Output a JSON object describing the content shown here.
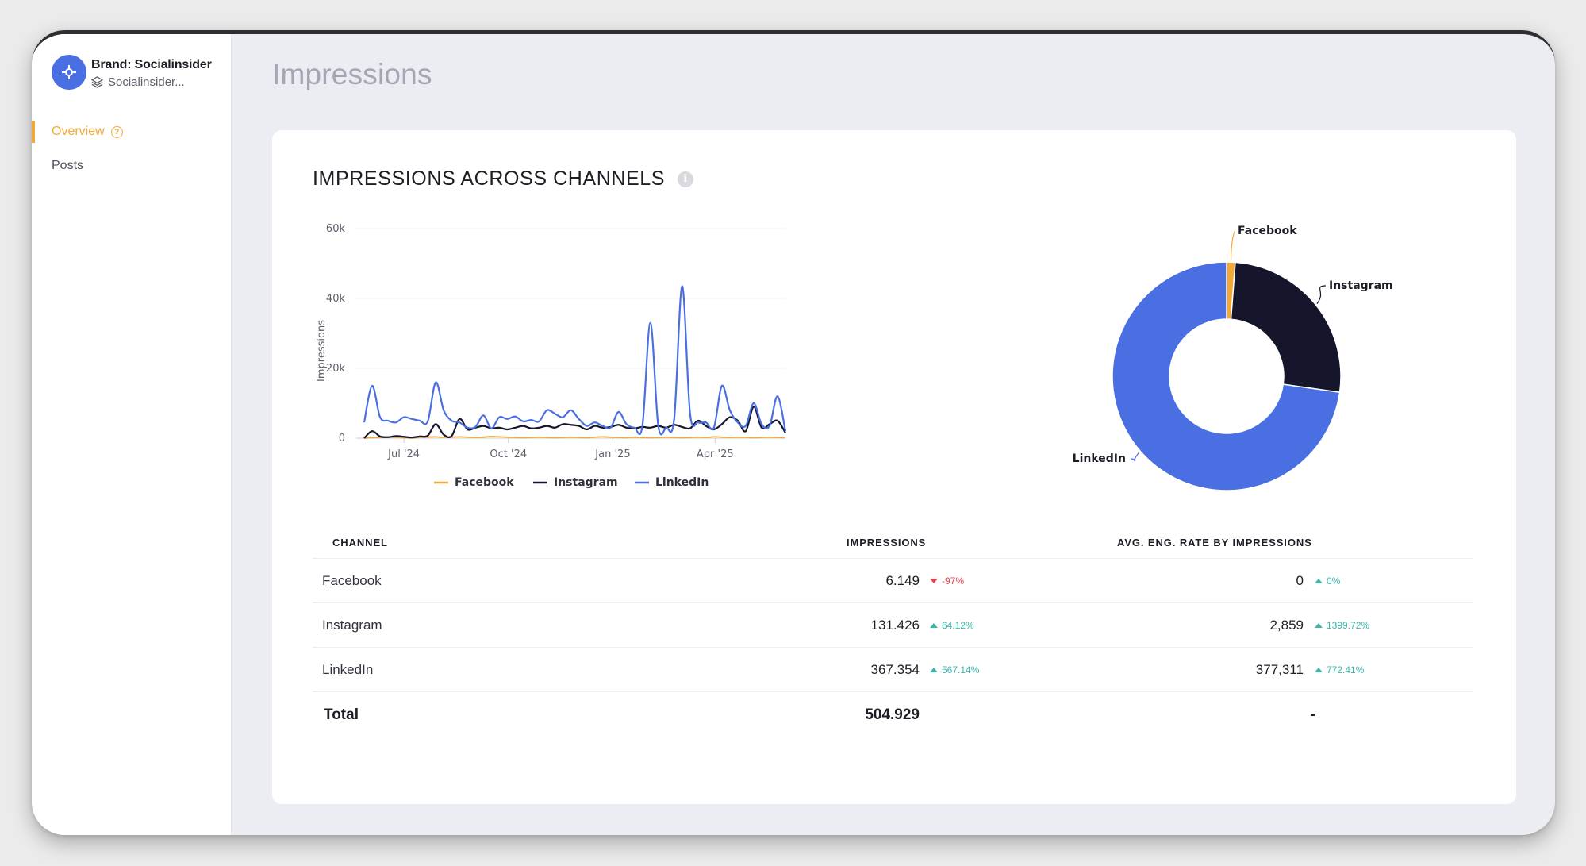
{
  "sidebar": {
    "brand_name": "Brand: Socialinsider",
    "brand_sub": "Socialinsider...",
    "items": [
      {
        "label": "Overview",
        "active": true,
        "help": "?"
      },
      {
        "label": "Posts",
        "active": false
      }
    ]
  },
  "page_title": "Impressions",
  "card": {
    "title": "IMPRESSIONS ACROSS CHANNELS",
    "info_icon": "i"
  },
  "colors": {
    "facebook": "#f3a93a",
    "instagram": "#15152b",
    "linkedin": "#4a6fe3",
    "accent": "#f3a93a",
    "up": "#38b8ad",
    "down": "#e2434b"
  },
  "chart_data": [
    {
      "type": "line",
      "ylabel": "Impressions",
      "ylim": [
        0,
        60000
      ],
      "yticks": [
        "0",
        "20k",
        "40k",
        "60k"
      ],
      "xticks": [
        "Jul '24",
        "Oct '24",
        "Jan '25",
        "Apr '25"
      ],
      "legend": "bottom",
      "grid": true,
      "x": [
        "2024-05-27",
        "2024-06-03",
        "2024-06-10",
        "2024-06-17",
        "2024-06-24",
        "2024-07-01",
        "2024-07-08",
        "2024-07-15",
        "2024-07-22",
        "2024-07-29",
        "2024-08-05",
        "2024-08-12",
        "2024-08-19",
        "2024-08-26",
        "2024-09-02",
        "2024-09-09",
        "2024-09-16",
        "2024-09-23",
        "2024-09-30",
        "2024-10-07",
        "2024-10-14",
        "2024-10-21",
        "2024-10-28",
        "2024-11-04",
        "2024-11-11",
        "2024-11-18",
        "2024-11-25",
        "2024-12-02",
        "2024-12-09",
        "2024-12-16",
        "2024-12-23",
        "2024-12-30",
        "2025-01-06",
        "2025-01-13",
        "2025-01-20",
        "2025-01-27",
        "2025-02-03",
        "2025-02-10",
        "2025-02-17",
        "2025-02-24",
        "2025-03-03",
        "2025-03-10",
        "2025-03-17",
        "2025-03-24",
        "2025-03-31",
        "2025-04-07",
        "2025-04-14",
        "2025-04-21",
        "2025-04-28",
        "2025-05-05",
        "2025-05-12",
        "2025-05-19",
        "2025-05-26",
        "2025-06-02"
      ],
      "series": [
        {
          "name": "Facebook",
          "values": [
            0,
            100,
            200,
            300,
            200,
            100,
            0,
            200,
            300,
            400,
            200,
            300,
            400,
            300,
            200,
            300,
            500,
            400,
            300,
            200,
            100,
            200,
            300,
            200,
            100,
            200,
            300,
            200,
            100,
            300,
            400,
            300,
            200,
            100,
            300,
            200,
            100,
            200,
            300,
            200,
            100,
            200,
            300,
            200,
            400,
            300,
            200,
            300,
            200,
            100,
            200,
            300,
            200,
            100
          ]
        },
        {
          "name": "Instagram",
          "values": [
            0,
            2000,
            500,
            300,
            600,
            400,
            200,
            500,
            700,
            4000,
            1000,
            600,
            5500,
            2500,
            3000,
            3500,
            2800,
            3000,
            2500,
            3000,
            3500,
            2800,
            3000,
            3500,
            3000,
            4000,
            3800,
            3500,
            2500,
            3500,
            3000,
            3200,
            3800,
            3000,
            2800,
            3200,
            3000,
            3500,
            3000,
            3800,
            3200,
            2800,
            5000,
            3500,
            2500,
            4000,
            6000,
            5000,
            2000,
            9000,
            3000,
            4000,
            5000,
            1500
          ]
        },
        {
          "name": "LinkedIn",
          "values": [
            4500,
            15000,
            6000,
            5000,
            4500,
            6000,
            5500,
            5000,
            4800,
            16000,
            8000,
            5000,
            4500,
            3000,
            3200,
            6500,
            2800,
            6000,
            5500,
            6200,
            4800,
            5200,
            4800,
            8000,
            7000,
            6000,
            8000,
            5500,
            3500,
            4500,
            3500,
            3000,
            7500,
            4000,
            3000,
            3500,
            33000,
            3500,
            3000,
            5500,
            43500,
            7000,
            4500,
            4500,
            3000,
            15000,
            8000,
            4500,
            3500,
            10000,
            4000,
            3500,
            12000,
            2000
          ]
        }
      ]
    },
    {
      "type": "pie",
      "donut": true,
      "labels": [
        "Facebook",
        "Instagram",
        "LinkedIn"
      ],
      "values": [
        6149,
        131426,
        367354
      ]
    }
  ],
  "table": {
    "headers": [
      "CHANNEL",
      "IMPRESSIONS",
      "AVG. ENG. RATE BY IMPRESSIONS"
    ],
    "rows": [
      {
        "channel": "Facebook",
        "impressions": "6.149",
        "imp_delta": "-97%",
        "imp_dir": "down",
        "eng": "0",
        "eng_delta": "0%",
        "eng_dir": "up"
      },
      {
        "channel": "Instagram",
        "impressions": "131.426",
        "imp_delta": "64.12%",
        "imp_dir": "up",
        "eng": "2,859",
        "eng_delta": "1399.72%",
        "eng_dir": "up"
      },
      {
        "channel": "LinkedIn",
        "impressions": "367.354",
        "imp_delta": "567.14%",
        "imp_dir": "up",
        "eng": "377,311",
        "eng_delta": "772.41%",
        "eng_dir": "up"
      }
    ],
    "total": {
      "label": "Total",
      "impressions": "504.929",
      "eng": "-"
    }
  }
}
